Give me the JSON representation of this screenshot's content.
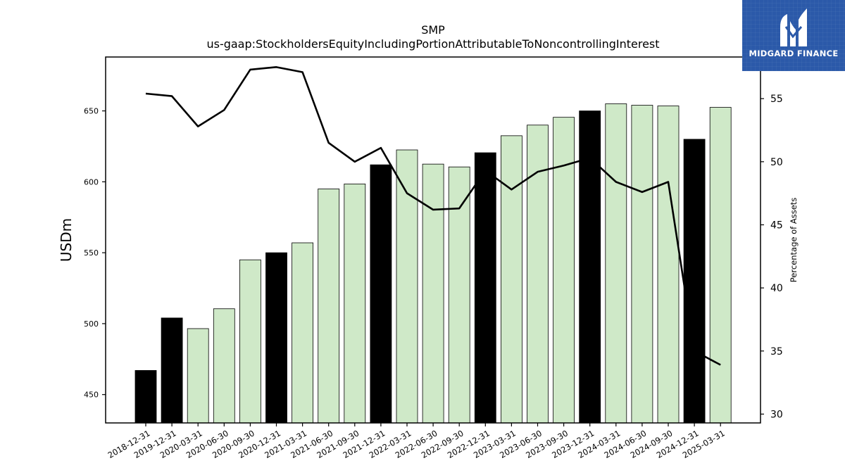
{
  "chart_data": {
    "type": "bar",
    "title": "SMP",
    "subtitle": "us-gaap:StockholdersEquityIncludingPortionAttributableToNoncontrollingInterest",
    "ylabel": "USDm",
    "ylabel_right": "Percentage of Assets",
    "ylim": [
      430,
      688
    ],
    "ylim_right": [
      29.3,
      58.3
    ],
    "yticks": [
      450,
      500,
      550,
      600,
      650
    ],
    "yticks_right": [
      30,
      35,
      40,
      45,
      50,
      55
    ],
    "grid": false,
    "categories": [
      "2018-12-31",
      "2019-12-31",
      "2020-03-31",
      "2020-06-30",
      "2020-09-30",
      "2020-12-31",
      "2021-03-31",
      "2021-06-30",
      "2021-09-30",
      "2021-12-31",
      "2022-03-31",
      "2022-06-30",
      "2022-09-30",
      "2022-12-31",
      "2023-03-31",
      "2023-06-30",
      "2023-09-30",
      "2023-12-31",
      "2024-03-31",
      "2024-06-30",
      "2024-09-30",
      "2024-12-31",
      "2025-03-31"
    ],
    "series": [
      {
        "kind": "bar",
        "axis": "left",
        "values": [
          467,
          504,
          496.5,
          510.5,
          545,
          550,
          557,
          595,
          598.5,
          612,
          622.5,
          612.5,
          610.5,
          620.5,
          632.5,
          640,
          645.5,
          650,
          655,
          654,
          653.5,
          630,
          652.5
        ],
        "annual": [
          true,
          true,
          false,
          false,
          false,
          true,
          false,
          false,
          false,
          true,
          false,
          false,
          false,
          true,
          false,
          false,
          false,
          true,
          false,
          false,
          false,
          true,
          false
        ]
      },
      {
        "kind": "line",
        "axis": "right",
        "values": [
          55.4,
          55.2,
          52.8,
          54.1,
          57.3,
          57.5,
          57.1,
          51.5,
          50.0,
          51.1,
          47.5,
          46.2,
          46.3,
          49.3,
          47.8,
          49.2,
          49.7,
          50.3,
          48.4,
          47.6,
          48.4,
          35.0,
          33.9
        ]
      }
    ],
    "colors": {
      "annual_bar": "#000000",
      "quarter_bar": "#cfe9c8",
      "line": "#000000"
    }
  },
  "logo": {
    "text": "MIDGARD FINANCE",
    "bg": "#2b59a9"
  }
}
